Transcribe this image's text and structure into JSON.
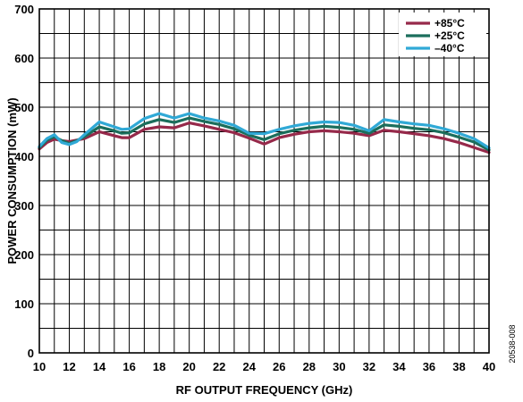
{
  "chart_data": {
    "type": "line",
    "xlabel": "RF OUTPUT FREQUENCY (GHz)",
    "ylabel": "POWER CONSUMPTION (mW)",
    "xlim": [
      10,
      40
    ],
    "ylim": [
      0,
      700
    ],
    "x_ticks": [
      10,
      12,
      14,
      16,
      18,
      20,
      22,
      24,
      26,
      28,
      30,
      32,
      34,
      36,
      38,
      40
    ],
    "y_ticks": [
      0,
      100,
      200,
      300,
      400,
      500,
      600,
      700
    ],
    "grid": true,
    "legend_position": "top-right",
    "x": [
      10,
      10.5,
      11,
      11.5,
      12,
      12.5,
      13,
      14,
      15,
      15.5,
      16,
      17,
      18,
      19,
      20,
      21,
      22,
      23,
      24,
      25,
      26,
      27,
      28,
      29,
      30,
      31,
      32,
      33,
      34,
      35,
      36,
      37,
      38,
      39,
      40
    ],
    "series": [
      {
        "name": "+85°C",
        "color": "#96294a",
        "values": [
          415,
          428,
          435,
          432,
          430,
          433,
          436,
          450,
          442,
          438,
          438,
          455,
          460,
          458,
          468,
          462,
          455,
          448,
          437,
          425,
          438,
          445,
          450,
          452,
          450,
          447,
          442,
          453,
          450,
          446,
          442,
          436,
          428,
          418,
          408
        ]
      },
      {
        "name": "+25°C",
        "color": "#1b6e5c",
        "values": [
          418,
          433,
          440,
          432,
          426,
          432,
          440,
          460,
          452,
          447,
          448,
          466,
          475,
          469,
          478,
          471,
          465,
          456,
          443,
          434,
          446,
          453,
          458,
          461,
          459,
          455,
          447,
          464,
          461,
          457,
          454,
          448,
          439,
          429,
          413
        ]
      },
      {
        "name": "–40°C",
        "color": "#30a9d6",
        "values": [
          420,
          436,
          444,
          428,
          424,
          430,
          444,
          470,
          460,
          455,
          456,
          477,
          487,
          478,
          487,
          478,
          472,
          463,
          447,
          446,
          455,
          462,
          467,
          470,
          469,
          463,
          452,
          475,
          470,
          466,
          463,
          456,
          447,
          436,
          417
        ]
      }
    ],
    "annotations": [
      "20538-008"
    ]
  }
}
